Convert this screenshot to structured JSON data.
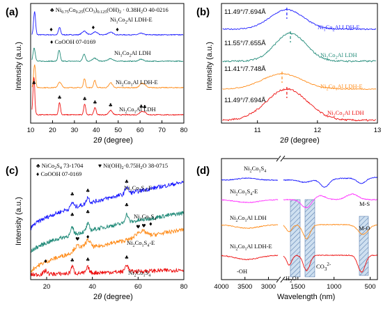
{
  "chart_data": [
    {
      "panel": "(a)",
      "type": "line",
      "xlabel": "2θ (degree)",
      "ylabel": "Intensity (a.u.)",
      "xlim": [
        10,
        80
      ],
      "xticks": [
        10,
        20,
        30,
        40,
        50,
        60,
        70,
        80
      ],
      "legend": [
        {
          "symbol": "♣",
          "text": "Ni0.75Co0.25(CO3)0.125(OH)2 · 0.38H2O 40-0216"
        },
        {
          "symbol": "♦",
          "text": "CoOOH 07-0169"
        }
      ],
      "series": [
        {
          "name": "Ni1Co2Al LDH-E",
          "color": "#1a1aff",
          "offset": 3,
          "peaks": [
            [
              11.8,
              0.95,
              0.45
            ],
            [
              23.2,
              0.3,
              0.5
            ],
            [
              34.5,
              0.15,
              1.0
            ],
            [
              39.5,
              0.12,
              1.0
            ],
            [
              46.5,
              0.1,
              1.2
            ],
            [
              60.5,
              0.06,
              1.0
            ]
          ]
        },
        {
          "name": "Ni1Co2Al LDH",
          "color": "#208a78",
          "offset": 2,
          "peaks": [
            [
              11.6,
              0.55,
              0.5
            ],
            [
              23.0,
              0.45,
              0.5
            ],
            [
              34.4,
              0.3,
              0.6
            ],
            [
              39.3,
              0.12,
              1.0
            ],
            [
              46.5,
              0.1,
              1.2
            ],
            [
              60.5,
              0.08,
              1.0
            ]
          ]
        },
        {
          "name": "Ni2Co1Al LDH-E",
          "color": "#ff8c1a",
          "offset": 1,
          "peaks": [
            [
              11.8,
              0.95,
              0.45
            ],
            [
              23.3,
              0.22,
              0.8
            ],
            [
              34.6,
              0.38,
              0.45
            ],
            [
              39.3,
              0.3,
              0.5
            ],
            [
              46.6,
              0.2,
              0.8
            ],
            [
              60.5,
              0.15,
              0.8
            ],
            [
              62.0,
              0.12,
              0.8
            ]
          ]
        },
        {
          "name": "Ni2Co1Al LDH",
          "color": "#ee1111",
          "offset": 0,
          "peaks": [
            [
              11.5,
              1.1,
              0.45
            ],
            [
              23.2,
              0.5,
              0.45
            ],
            [
              34.7,
              0.45,
              0.45
            ],
            [
              39.4,
              0.3,
              0.5
            ],
            [
              46.5,
              0.18,
              0.8
            ],
            [
              60.5,
              0.12,
              0.8
            ],
            [
              62.1,
              0.1,
              0.8
            ]
          ]
        }
      ],
      "markers": [
        {
          "symbol": "♦",
          "x": 19.4,
          "series": 0
        },
        {
          "symbol": "♦",
          "x": 38.6,
          "series": 0
        },
        {
          "symbol": "♦",
          "x": 49.6,
          "series": 0
        },
        {
          "symbol": "♣",
          "x": 11.5,
          "series": 3
        },
        {
          "symbol": "♣",
          "x": 23.2,
          "series": 3
        },
        {
          "symbol": "♣",
          "x": 34.7,
          "series": 3
        },
        {
          "symbol": "♣",
          "x": 39.4,
          "series": 3
        },
        {
          "symbol": "♣",
          "x": 46.5,
          "series": 3
        },
        {
          "symbol": "♣",
          "x": 60.5,
          "series": 3
        },
        {
          "symbol": "♣",
          "x": 62.1,
          "series": 3
        }
      ]
    },
    {
      "panel": "(b)",
      "type": "line",
      "xlabel": "2θ (degree)",
      "xlim": [
        10.4,
        13
      ],
      "xticks": [
        11,
        12,
        13
      ],
      "series": [
        {
          "name": "Ni1Co2Al LDH-E",
          "color": "#1a1aff",
          "peak": 11.49,
          "label": "11.49°/7.694Å"
        },
        {
          "name": "Ni1Co2Al LDH",
          "color": "#208a78",
          "peak": 11.55,
          "label": "11.55°/7.655Å"
        },
        {
          "name": "Ni2Co1Al LDH-E",
          "color": "#ff8c1a",
          "peak": 11.41,
          "label": "11.41°/7.748Å"
        },
        {
          "name": "Ni2Co1Al LDH",
          "color": "#ee1111",
          "peak": 11.49,
          "label": "11.49°/7.694Å"
        }
      ]
    },
    {
      "panel": "(c)",
      "type": "line",
      "xlabel": "2θ (degree)",
      "ylabel": "Intensity (a.u.)",
      "xlim": [
        13,
        80
      ],
      "xticks": [
        20,
        40,
        60,
        80
      ],
      "legend": [
        {
          "symbol": "♣",
          "text": "NiCo2S4 73-1704"
        },
        {
          "symbol": "♥",
          "text": "Ni(OH)2·0.75H2O 38-0715"
        },
        {
          "symbol": "♦",
          "text": "CoOOH 07-0169"
        }
      ],
      "series": [
        {
          "name": "Ni1Co2S4-E",
          "color": "#1a1aff",
          "offset": 3
        },
        {
          "name": "Ni1Co2S4",
          "color": "#208a78",
          "offset": 2
        },
        {
          "name": "Ni2Co1S4-E",
          "color": "#ff8c1a",
          "offset": 1
        },
        {
          "name": "Ni2Co1S4",
          "color": "#ee1111",
          "offset": 0
        }
      ],
      "markers": [
        {
          "symbol": "♣",
          "x": 31.2,
          "series": 0
        },
        {
          "symbol": "♣",
          "x": 38.0,
          "series": 0
        },
        {
          "symbol": "♣",
          "x": 55.0,
          "series": 0
        },
        {
          "symbol": "♣",
          "x": 31.2,
          "series": 1
        },
        {
          "symbol": "♣",
          "x": 38.0,
          "series": 1
        },
        {
          "symbol": "♣",
          "x": 55.0,
          "series": 1
        },
        {
          "symbol": "♥",
          "x": 33.5,
          "series": 2
        },
        {
          "symbol": "♦",
          "x": 38.0,
          "series": 2
        },
        {
          "symbol": "♥",
          "x": 60.0,
          "series": 2
        },
        {
          "symbol": "♥",
          "x": 62.5,
          "series": 2
        },
        {
          "symbol": "♦",
          "x": 65.5,
          "series": 2
        },
        {
          "symbol": "♦",
          "x": 19.5,
          "series": 3
        },
        {
          "symbol": "♣",
          "x": 31.2,
          "series": 3
        },
        {
          "symbol": "♣",
          "x": 38.0,
          "series": 3
        },
        {
          "symbol": "♣",
          "x": 55.0,
          "series": 3
        }
      ]
    },
    {
      "panel": "(d)",
      "type": "line",
      "xlabel": "Wavelength (nm)",
      "xticks_left": [
        4000,
        3500,
        3000
      ],
      "xticks_right": [
        1500,
        1000,
        500
      ],
      "series": [
        {
          "name": "Ni2Co1S4",
          "color": "#1a1aff"
        },
        {
          "name": "Ni2Co1S4-E",
          "color": "#ff33ff"
        },
        {
          "name": "Ni2Co1Al LDH",
          "color": "#ff8c1a"
        },
        {
          "name": "Ni2Co1Al LDH-E",
          "color": "#ee1111"
        }
      ],
      "annotations": [
        "M-S",
        "M-O",
        "CO32-",
        "H2O",
        "-OH"
      ]
    }
  ]
}
